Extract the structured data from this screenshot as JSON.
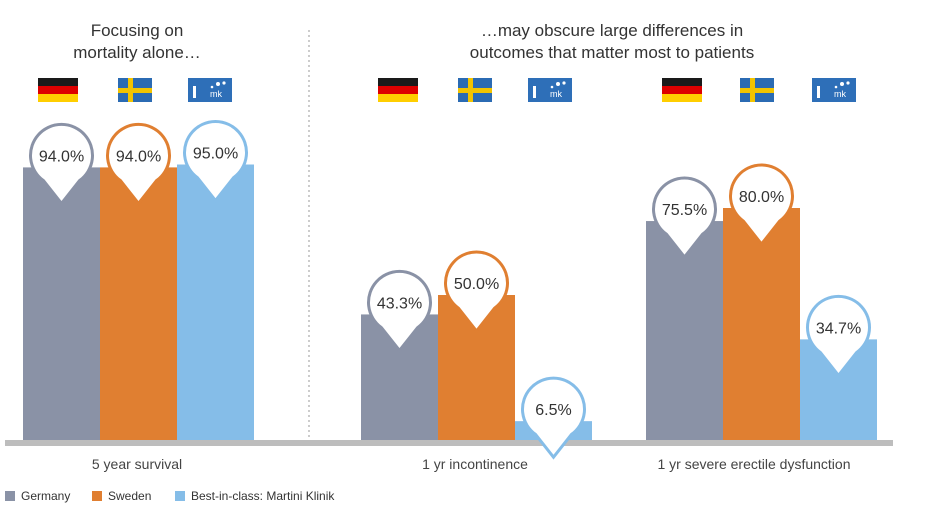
{
  "headings": {
    "left": [
      "Focusing on",
      "mortality alone…"
    ],
    "right": [
      "…may obscure large differences in",
      "outcomes that matter most to patients"
    ]
  },
  "colors": {
    "Germany": "#8a92a6",
    "Sweden": "#e07f31",
    "Martini": "#85bde8",
    "axis": "#bdbdbd",
    "divider": "#999999"
  },
  "flags": [
    "germany-flag-icon",
    "sweden-flag-icon",
    "martini-klinik-logo-icon"
  ],
  "logo_text": "mk",
  "chart_data": {
    "type": "bar",
    "categories": [
      "5 year survival",
      "1 yr incontinence",
      "1 yr severe erectile dysfunction"
    ],
    "series": [
      {
        "name": "Germany",
        "values": [
          94.0,
          43.3,
          75.5
        ],
        "labels": [
          "94.0%",
          "43.3%",
          "75.5%"
        ]
      },
      {
        "name": "Sweden",
        "values": [
          94.0,
          50.0,
          80.0
        ],
        "labels": [
          "94.0%",
          "50.0%",
          "80.0%"
        ]
      },
      {
        "name": "Best-in-class: Martini Klinik",
        "values": [
          95.0,
          6.5,
          34.7
        ],
        "labels": [
          "95.0%",
          "6.5%",
          "34.7%"
        ]
      }
    ],
    "ylim": [
      0,
      100
    ],
    "legend_position": "bottom-left"
  }
}
